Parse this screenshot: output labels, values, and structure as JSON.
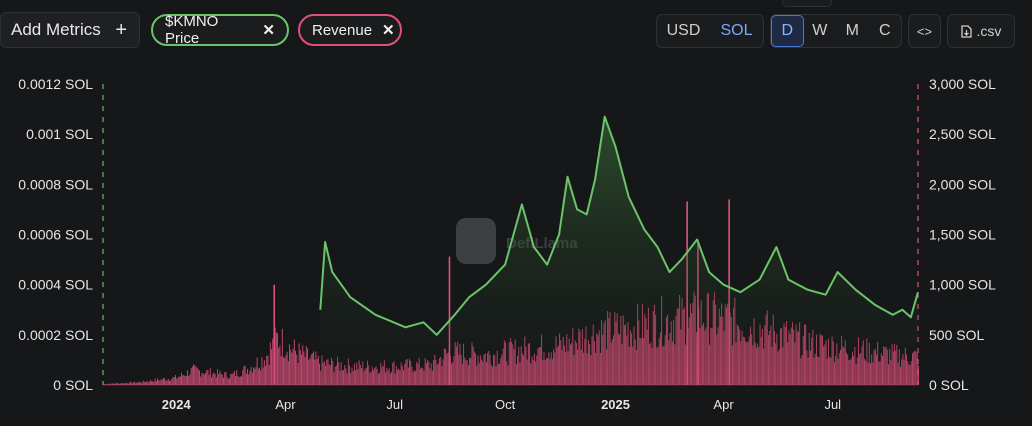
{
  "toolbar": {
    "add_metrics_label": "Add Metrics",
    "add_metrics_icon": "+",
    "chips": [
      {
        "label": "$KMNO Price",
        "close": "✕",
        "color": "#6cc46a"
      },
      {
        "label": "Revenue",
        "close": "✕",
        "color": "#e0507e"
      }
    ],
    "currency": {
      "usd": "USD",
      "sol": "SOL",
      "selected": "SOL"
    },
    "intervals": {
      "d": "D",
      "w": "W",
      "m": "M",
      "c": "C",
      "selected": "D"
    },
    "embed_icon": "<>",
    "csv_label": ".csv"
  },
  "watermark": "DefiLlama",
  "chart_data": {
    "type": "line+bar",
    "x_tick_labels": [
      "2024",
      "Apr",
      "Jul",
      "Oct",
      "2025",
      "Apr",
      "Jul"
    ],
    "x_range": [
      "2023-11-01",
      "2025-09-10"
    ],
    "left_axis": {
      "ticks": [
        "0 SOL",
        "0.0002 SOL",
        "0.0004 SOL",
        "0.0006 SOL",
        "0.0008 SOL",
        "0.001 SOL",
        "0.0012 SOL"
      ],
      "range": [
        0,
        0.0012
      ]
    },
    "right_axis": {
      "ticks": [
        "0 SOL",
        "500 SOL",
        "1,000 SOL",
        "1,500 SOL",
        "2,000 SOL",
        "2,500 SOL",
        "3,000 SOL"
      ],
      "range": [
        0,
        3000
      ]
    },
    "series": [
      {
        "name": "$KMNO Price",
        "color": "#6cc46a",
        "points": [
          [
            "2024-04-30",
            0.0003
          ],
          [
            "2024-05-04",
            0.00057
          ],
          [
            "2024-05-10",
            0.00045
          ],
          [
            "2024-05-25",
            0.00035
          ],
          [
            "2024-06-15",
            0.00028
          ],
          [
            "2024-07-10",
            0.00023
          ],
          [
            "2024-07-25",
            0.00025
          ],
          [
            "2024-08-05",
            0.0002
          ],
          [
            "2024-08-20",
            0.00028
          ],
          [
            "2024-09-01",
            0.00035
          ],
          [
            "2024-09-15",
            0.0004
          ],
          [
            "2024-10-01",
            0.00048
          ],
          [
            "2024-10-15",
            0.00072
          ],
          [
            "2024-10-25",
            0.00055
          ],
          [
            "2024-11-05",
            0.00048
          ],
          [
            "2024-11-15",
            0.0006
          ],
          [
            "2024-11-22",
            0.00083
          ],
          [
            "2024-11-30",
            0.0007
          ],
          [
            "2024-12-08",
            0.00068
          ],
          [
            "2024-12-15",
            0.00082
          ],
          [
            "2024-12-23",
            0.00107
          ],
          [
            "2025-01-01",
            0.00095
          ],
          [
            "2025-01-12",
            0.00075
          ],
          [
            "2025-01-25",
            0.00062
          ],
          [
            "2025-02-05",
            0.00055
          ],
          [
            "2025-02-15",
            0.00045
          ],
          [
            "2025-02-25",
            0.0005
          ],
          [
            "2025-03-10",
            0.00058
          ],
          [
            "2025-03-20",
            0.00045
          ],
          [
            "2025-04-01",
            0.0004
          ],
          [
            "2025-04-15",
            0.00037
          ],
          [
            "2025-05-01",
            0.00042
          ],
          [
            "2025-05-15",
            0.00055
          ],
          [
            "2025-05-25",
            0.00042
          ],
          [
            "2025-06-10",
            0.00038
          ],
          [
            "2025-06-25",
            0.00036
          ],
          [
            "2025-07-05",
            0.00045
          ],
          [
            "2025-07-20",
            0.00038
          ],
          [
            "2025-08-05",
            0.00032
          ],
          [
            "2025-08-20",
            0.00028
          ],
          [
            "2025-08-28",
            0.0003
          ],
          [
            "2025-09-04",
            0.00027
          ],
          [
            "2025-09-10",
            0.00037
          ]
        ]
      },
      {
        "name": "Revenue",
        "color": "#e0507e",
        "points": [
          [
            "2023-11-01",
            10
          ],
          [
            "2023-12-01",
            30
          ],
          [
            "2024-01-01",
            80
          ],
          [
            "2024-01-15",
            160
          ],
          [
            "2024-02-15",
            100
          ],
          [
            "2024-03-01",
            180
          ],
          [
            "2024-03-15",
            300
          ],
          [
            "2024-03-25",
            500
          ],
          [
            "2024-04-10",
            350
          ],
          [
            "2024-05-01",
            230
          ],
          [
            "2024-06-01",
            200
          ],
          [
            "2024-07-01",
            200
          ],
          [
            "2024-08-01",
            220
          ],
          [
            "2024-08-15",
            350
          ],
          [
            "2024-09-15",
            320
          ],
          [
            "2024-10-15",
            380
          ],
          [
            "2024-11-15",
            420
          ],
          [
            "2024-12-15",
            560
          ],
          [
            "2025-01-15",
            620
          ],
          [
            "2025-02-15",
            700
          ],
          [
            "2025-03-15",
            740
          ],
          [
            "2025-04-15",
            660
          ],
          [
            "2025-05-15",
            560
          ],
          [
            "2025-06-15",
            440
          ],
          [
            "2025-07-15",
            390
          ],
          [
            "2025-08-15",
            330
          ],
          [
            "2025-09-10",
            300
          ]
        ],
        "spikes": [
          [
            "2024-03-22",
            1000
          ],
          [
            "2024-08-15",
            1280
          ],
          [
            "2025-03-01",
            1830
          ],
          [
            "2025-03-10",
            1420
          ],
          [
            "2025-04-05",
            1850
          ]
        ]
      }
    ]
  }
}
